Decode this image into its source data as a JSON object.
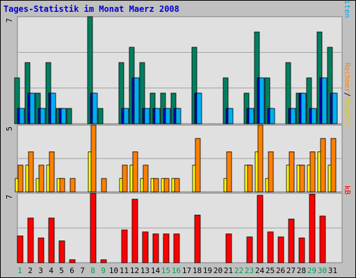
{
  "chart_data": [
    {
      "type": "bar",
      "title": "Tages-Statistik im Monat Maerz 2008",
      "ylabel_parts": [
        {
          "text": "Anfragen",
          "color": "#007f5f"
        },
        {
          "text": "/",
          "color": "#000000"
        },
        {
          "text": "Dateien",
          "color": "#0000cc"
        },
        {
          "text": "/",
          "color": "#000000"
        },
        {
          "text": "Seiten",
          "color": "#00a8e8"
        }
      ],
      "ymax_label": "7",
      "ylim": [
        0,
        7
      ],
      "categories": [
        "1",
        "2",
        "3",
        "4",
        "5",
        "6",
        "7",
        "8",
        "9",
        "10",
        "11",
        "12",
        "13",
        "14",
        "15",
        "16",
        "17",
        "18",
        "19",
        "20",
        "21",
        "22",
        "23",
        "24",
        "25",
        "26",
        "27",
        "28",
        "29",
        "30",
        "31"
      ],
      "weekend_days": [
        "1",
        "8",
        "9",
        "15",
        "16",
        "22",
        "23",
        "29",
        "30"
      ],
      "series": [
        {
          "name": "Anfragen",
          "color": "#008060",
          "values": [
            3,
            4,
            2,
            4,
            1,
            1,
            0,
            7,
            1,
            0,
            4,
            5,
            4,
            2,
            2,
            2,
            0,
            5,
            0,
            0,
            3,
            0,
            2,
            6,
            3,
            0,
            4,
            2,
            3,
            6,
            5
          ]
        },
        {
          "name": "Dateien",
          "color": "#0000cc",
          "values": [
            1,
            2,
            1,
            2,
            1,
            0,
            0,
            2,
            0,
            0,
            1,
            3,
            1,
            1,
            1,
            1,
            0,
            2,
            0,
            0,
            1,
            0,
            1,
            3,
            1,
            0,
            1,
            2,
            1,
            3,
            2
          ]
        },
        {
          "name": "Seiten",
          "color": "#00b0f0",
          "values": [
            1,
            2,
            1,
            2,
            1,
            0,
            0,
            2,
            0,
            0,
            1,
            3,
            1,
            1,
            1,
            1,
            0,
            2,
            0,
            0,
            1,
            0,
            1,
            3,
            1,
            0,
            1,
            2,
            1,
            3,
            2
          ]
        }
      ]
    },
    {
      "type": "bar",
      "ylabel_parts": [
        {
          "text": "Rechner",
          "color": "#ff8000"
        },
        {
          "text": "/",
          "color": "#000000"
        },
        {
          "text": "Besuche",
          "color": "#e6c800"
        }
      ],
      "ymax_label": "5",
      "ylim": [
        0,
        5
      ],
      "categories": [
        "1",
        "2",
        "3",
        "4",
        "5",
        "6",
        "7",
        "8",
        "9",
        "10",
        "11",
        "12",
        "13",
        "14",
        "15",
        "16",
        "17",
        "18",
        "19",
        "20",
        "21",
        "22",
        "23",
        "24",
        "25",
        "26",
        "27",
        "28",
        "29",
        "30",
        "31"
      ],
      "series": [
        {
          "name": "Besuche",
          "color": "#ffff00",
          "values": [
            1,
            2,
            1,
            2,
            1,
            0,
            0,
            3,
            0,
            0,
            1,
            2,
            1,
            1,
            1,
            1,
            0,
            2,
            0,
            0,
            1,
            0,
            2,
            3,
            1,
            0,
            2,
            2,
            2,
            3,
            2
          ]
        },
        {
          "name": "Rechner",
          "color": "#ff8000",
          "values": [
            2,
            3,
            2,
            3,
            1,
            1,
            0,
            5,
            1,
            0,
            2,
            3,
            2,
            1,
            1,
            1,
            0,
            4,
            0,
            0,
            3,
            0,
            2,
            5,
            3,
            0,
            3,
            2,
            3,
            4,
            4
          ]
        }
      ]
    },
    {
      "type": "bar",
      "ylabel_parts": [
        {
          "text": "kB",
          "color": "#ff0000"
        }
      ],
      "ymax_label": "7",
      "ylim": [
        0,
        7
      ],
      "categories": [
        "1",
        "2",
        "3",
        "4",
        "5",
        "6",
        "7",
        "8",
        "9",
        "10",
        "11",
        "12",
        "13",
        "14",
        "15",
        "16",
        "17",
        "18",
        "19",
        "20",
        "21",
        "22",
        "23",
        "24",
        "25",
        "26",
        "27",
        "28",
        "29",
        "30",
        "31"
      ],
      "series": [
        {
          "name": "kB",
          "color": "#ff0000",
          "values": [
            2.7,
            4.5,
            2.5,
            4.5,
            2.2,
            0.3,
            0,
            7,
            0.3,
            0,
            3.3,
            6.4,
            3.1,
            2.9,
            2.9,
            2.9,
            0,
            4.8,
            0,
            0,
            2.9,
            0,
            2.6,
            6.8,
            3.1,
            2.6,
            4.4,
            2.5,
            6.9,
            4.7,
            0
          ]
        }
      ]
    }
  ],
  "colors": {
    "background": "#c0c0c0",
    "plot_background": "#e0e0e0",
    "title": "#0000cc",
    "day_label": "#000000",
    "weekend_label": "#00a050"
  }
}
